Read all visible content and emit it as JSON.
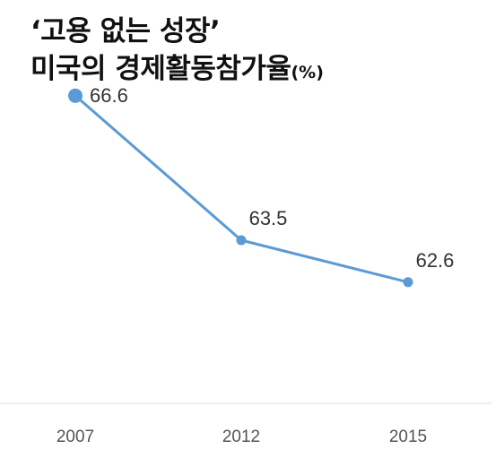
{
  "title": {
    "line1": "‘고용 없는 성장’",
    "line2": "미국의 경제활동참가율",
    "unit": "(%)"
  },
  "colors": {
    "series": "#5b9bd5",
    "baseline": "#dddddd"
  },
  "chart_data": {
    "type": "line",
    "title": "‘고용 없는 성장’ 미국의 경제활동참가율",
    "unit": "(%)",
    "categories": [
      "2007",
      "2012",
      "2015"
    ],
    "values": [
      66.6,
      63.5,
      62.6
    ],
    "data_labels": [
      "66.6",
      "63.5",
      "62.6"
    ],
    "ylim": [
      60.0,
      67.5
    ],
    "grid": false,
    "legend": "none"
  }
}
